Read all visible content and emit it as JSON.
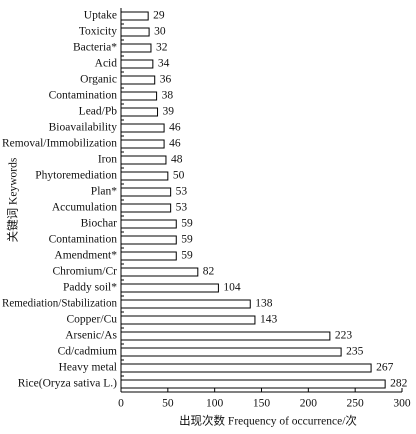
{
  "chart_data": {
    "type": "bar",
    "orientation": "horizontal",
    "xlabel": "出现次数 Frequency of occurrence/次",
    "ylabel": "关键词 Keywords",
    "categories": [
      "Uptake",
      "Toxicity",
      "Bacteria*",
      "Acid",
      "Organic",
      "Contamination",
      "Lead/Pb",
      "Bioavailability",
      "Removal/Immobilization",
      "Iron",
      "Phytoremediation",
      "Plan*",
      "Accumulation",
      "Biochar",
      "Contamination",
      "Amendment*",
      "Chromium/Cr",
      "Paddy soil*",
      "Remediation/Stabilization",
      "Copper/Cu",
      "Arsenic/As",
      "Cd/cadmium",
      "Heavy metal",
      "Rice(Oryza sativa L.)"
    ],
    "values": [
      29,
      30,
      32,
      34,
      36,
      38,
      39,
      46,
      46,
      48,
      50,
      53,
      53,
      59,
      59,
      59,
      82,
      104,
      138,
      143,
      223,
      235,
      267,
      282
    ],
    "color": "#ffffff",
    "edgecolor": "#000000",
    "xlim": [
      0,
      300
    ],
    "xticks": [
      0,
      50,
      100,
      150,
      200,
      250,
      300
    ]
  }
}
